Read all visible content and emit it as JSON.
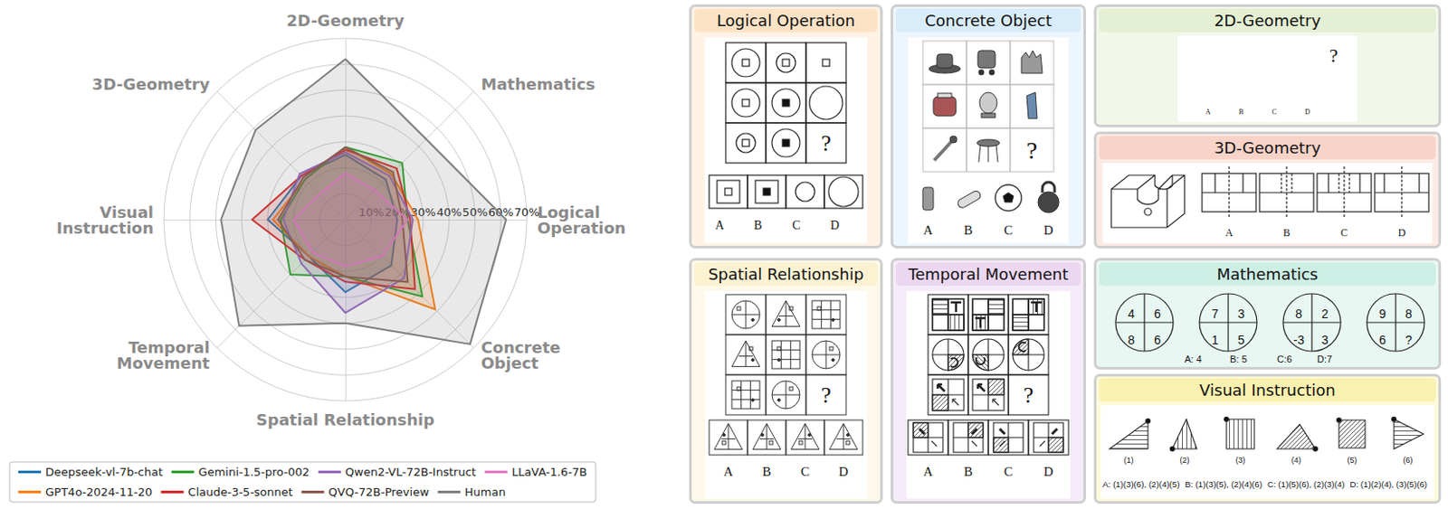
{
  "chart_data": {
    "type": "radar",
    "categories": [
      "2D-Geometry",
      "3D-Geometry",
      "Visual Instruction",
      "Temporal Movement",
      "Spatial Relationship",
      "Concrete Object",
      "Logical Operation",
      "Mathematics"
    ],
    "series": [
      {
        "name": "Deepseek-vl-7b-chat",
        "color": "#1f77b4",
        "values": [
          25,
          24,
          30,
          20,
          28,
          25,
          20,
          22
        ]
      },
      {
        "name": "GPT4o-2024-11-20",
        "color": "#ff7f0e",
        "values": [
          28,
          22,
          28,
          20,
          22,
          49,
          28,
          25
        ]
      },
      {
        "name": "Gemini-1.5-pro-002",
        "color": "#2ca02c",
        "values": [
          28,
          22,
          25,
          30,
          22,
          42,
          24,
          31
        ]
      },
      {
        "name": "Claude-3-5-sonnet",
        "color": "#d62728",
        "values": [
          27,
          24,
          36,
          22,
          24,
          38,
          25,
          28
        ]
      },
      {
        "name": "Qwen2-VL-72B-Instruct",
        "color": "#9467bd",
        "values": [
          26,
          25,
          24,
          24,
          36,
          32,
          26,
          24
        ]
      },
      {
        "name": "QVQ-72B-Preview",
        "color": "#8c564b",
        "values": [
          28,
          23,
          26,
          22,
          22,
          34,
          22,
          26
        ]
      },
      {
        "name": "LLaVA-1.6-7B",
        "color": "#e377c2",
        "values": [
          18,
          14,
          20,
          18,
          18,
          20,
          24,
          16
        ]
      },
      {
        "name": "Human",
        "color": "#7f7f7f",
        "values": [
          62,
          49,
          48,
          58,
          40,
          68,
          62,
          44
        ]
      }
    ],
    "ylim": [
      0,
      70
    ],
    "yticks": [
      {
        "value": 10,
        "label": "10%"
      },
      {
        "value": 20,
        "label": "20%"
      },
      {
        "value": 30,
        "label": "30%"
      },
      {
        "value": 40,
        "label": "40%"
      },
      {
        "value": 50,
        "label": "50%"
      },
      {
        "value": 60,
        "label": "60%"
      },
      {
        "value": 70,
        "label": "70%"
      }
    ],
    "grid": true,
    "legend": "bottom"
  },
  "panels": [
    {
      "title": "Logical Operation",
      "question": "?",
      "options": [
        "A",
        "B",
        "C",
        "D"
      ]
    },
    {
      "title": "Concrete Object",
      "question": "?",
      "options": [
        "A",
        "B",
        "C",
        "D"
      ]
    },
    {
      "title": "2D-Geometry",
      "question": "?",
      "options": [
        "A",
        "B",
        "C",
        "D"
      ]
    },
    {
      "title": "3D-Geometry",
      "options": [
        "A",
        "B",
        "C",
        "D"
      ]
    },
    {
      "title": "Spatial Relationship",
      "question": "?",
      "options": [
        "A",
        "B",
        "C",
        "D"
      ]
    },
    {
      "title": "Temporal Movement",
      "question": "?",
      "options": [
        "A",
        "B",
        "C",
        "D"
      ]
    },
    {
      "title": "Mathematics",
      "circles": [
        [
          "4",
          "6",
          "8",
          "6"
        ],
        [
          "7",
          "3",
          "1",
          "5"
        ],
        [
          "8",
          "2",
          "-3",
          "3"
        ],
        [
          "9",
          "8",
          "6",
          "?"
        ]
      ],
      "options": [
        "A: 4",
        "B: 5",
        "C:6",
        "D:7"
      ]
    },
    {
      "title": "Visual Instruction",
      "figures": [
        "(1)",
        "(2)",
        "(3)",
        "(4)",
        "(5)",
        "(6)"
      ],
      "options": [
        "A: (1)(3)(6), (2)(4)(5)",
        "B: (1)(3)(5), (2)(4)(6)",
        "C: (1)(5)(6), (2)(3)(4)",
        "D: (1)(2)(4), (3)(5)(6)"
      ]
    }
  ]
}
